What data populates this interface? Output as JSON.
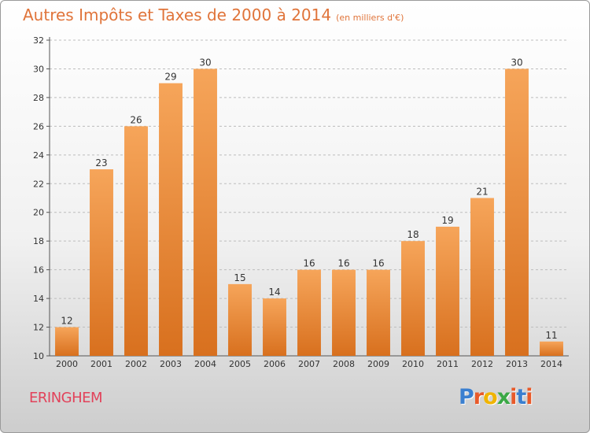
{
  "title": "Autres Impôts et Taxes de 2000 à 2014",
  "subtitle": "(en milliers d'€)",
  "location": "ERINGHEM",
  "brand": {
    "letters": [
      "P",
      "r",
      "o",
      "x",
      "i",
      "t",
      "i"
    ],
    "colors": [
      "#3a7fd0",
      "#e85a2a",
      "#f0b400",
      "#3aa845",
      "#e85a2a",
      "#3a7fd0",
      "#e85a2a"
    ]
  },
  "colors": {
    "bar_top": "#f6a55a",
    "bar_bottom": "#d8701e",
    "title": "#e0743a",
    "location": "#e2425a"
  },
  "chart_data": {
    "type": "bar",
    "categories": [
      "2000",
      "2001",
      "2002",
      "2003",
      "2004",
      "2005",
      "2006",
      "2007",
      "2008",
      "2009",
      "2010",
      "2011",
      "2012",
      "2013",
      "2014"
    ],
    "values": [
      12,
      23,
      26,
      29,
      30,
      15,
      14,
      16,
      16,
      16,
      18,
      19,
      21,
      30,
      11
    ],
    "title": "Autres Impôts et Taxes de 2000 à 2014",
    "ylim": [
      10,
      32
    ],
    "yticks": [
      10,
      12,
      14,
      16,
      18,
      20,
      22,
      24,
      26,
      28,
      30,
      32
    ],
    "grid": true
  }
}
